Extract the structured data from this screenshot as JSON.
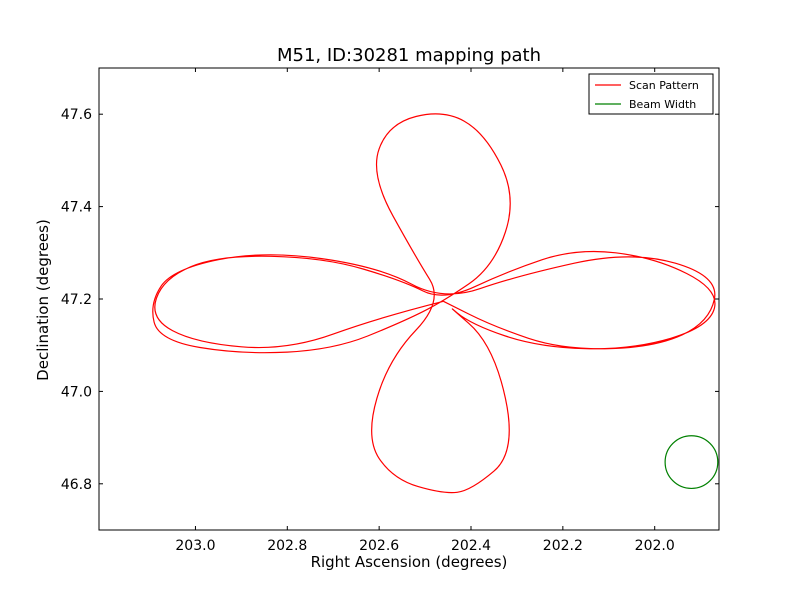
{
  "chart_data": {
    "type": "line",
    "title": "M51, ID:30281 mapping path",
    "xlabel": "Right Ascension (degrees)",
    "ylabel": "Declination (degrees)",
    "xlim": [
      203.21,
      201.86
    ],
    "ylim": [
      46.7,
      47.7
    ],
    "x_inverted": true,
    "xticks": [
      203.0,
      202.8,
      202.6,
      202.4,
      202.2,
      202.0
    ],
    "xtick_labels": [
      "203.0",
      "202.8",
      "202.6",
      "202.4",
      "202.2",
      "202.0"
    ],
    "yticks": [
      46.8,
      47.0,
      47.2,
      47.4,
      47.6
    ],
    "ytick_labels": [
      "46.8",
      "47.0",
      "47.2",
      "47.4",
      "47.6"
    ],
    "grid": false,
    "legend_position": "top-right",
    "series": [
      {
        "name": "Scan Pattern",
        "color": "#ff0000",
        "x": [
          202.46,
          202.6,
          202.8,
          203.0,
          203.1,
          203.07,
          202.95,
          202.72,
          202.55,
          202.46,
          202.32,
          202.17,
          202.0,
          201.86,
          201.88,
          202.05,
          202.25,
          202.4,
          202.46,
          202.35,
          202.3,
          202.4,
          202.46,
          202.57,
          202.63,
          202.58,
          202.46,
          202.52,
          202.62,
          202.58,
          202.46,
          202.37,
          202.3,
          202.35,
          202.46,
          202.55,
          202.7,
          202.9,
          203.08,
          203.1,
          203.05,
          202.85,
          202.6,
          202.46,
          202.3,
          202.05,
          201.86,
          201.88,
          202.0,
          202.2,
          202.35,
          202.46
        ],
        "y": [
          47.195,
          47.16,
          47.088,
          47.105,
          47.158,
          47.245,
          47.295,
          47.29,
          47.24,
          47.195,
          47.26,
          47.31,
          47.29,
          47.22,
          47.14,
          47.09,
          47.095,
          47.145,
          47.195,
          47.1,
          46.87,
          46.785,
          46.778,
          46.81,
          46.9,
          47.07,
          47.195,
          47.29,
          47.47,
          47.58,
          47.61,
          47.56,
          47.42,
          47.27,
          47.195,
          47.15,
          47.09,
          47.08,
          47.11,
          47.19,
          47.265,
          47.305,
          47.27,
          47.195,
          47.25,
          47.305,
          47.25,
          47.15,
          47.095,
          47.09,
          47.14,
          47.195
        ]
      },
      {
        "name": "Beam Width",
        "color": "#008000",
        "shape": "circle",
        "center": [
          201.92,
          46.847
        ],
        "radius_deg": 0.057
      }
    ]
  }
}
